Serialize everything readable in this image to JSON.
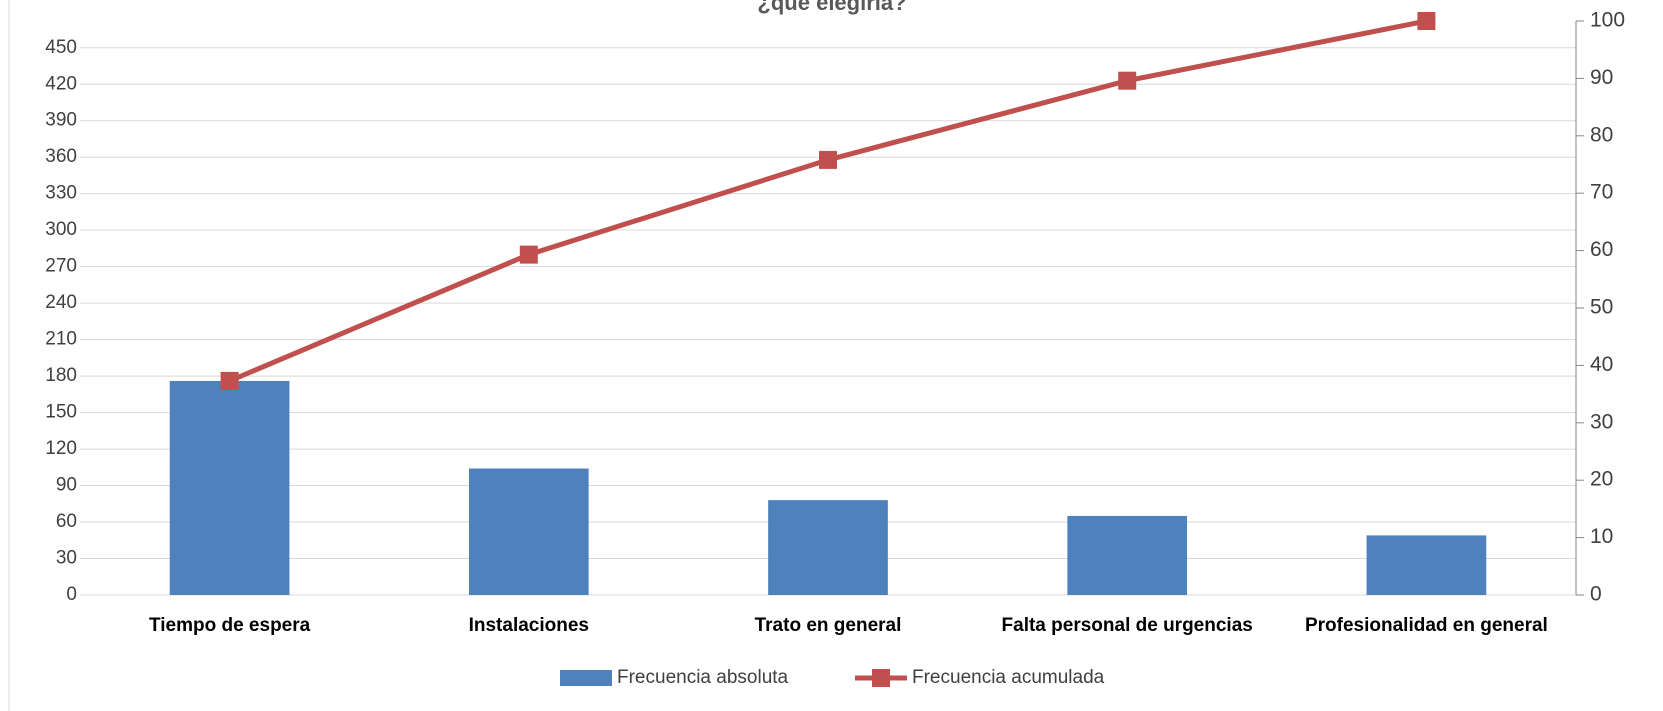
{
  "chart_data": {
    "type": "bar_line",
    "title": "¿qué elegiría?",
    "categories": [
      "Tiempo de espera",
      "Instalaciones",
      "Trato en general",
      "Falta personal de urgencias",
      "Profesionalidad en general"
    ],
    "series": [
      {
        "name": "Frecuencia absoluta",
        "color": "#4f81bd",
        "type": "bar",
        "values": [
          176,
          104,
          78,
          65,
          49
        ]
      },
      {
        "name": "Frecuencia acumulada",
        "color": "#c0504d",
        "type": "line",
        "axis": "y2",
        "values": [
          37.3,
          59.3,
          75.8,
          89.6,
          100
        ]
      }
    ],
    "ylim": [
      0,
      472
    ],
    "yticks": [
      0,
      30,
      60,
      90,
      120,
      150,
      180,
      210,
      240,
      270,
      300,
      330,
      360,
      390,
      420,
      450
    ],
    "y2lim": [
      0,
      100
    ],
    "y2ticks": [
      0,
      10,
      20,
      30,
      40,
      50,
      60,
      70,
      80,
      90,
      100
    ],
    "grid": true,
    "legend": "bottom"
  }
}
